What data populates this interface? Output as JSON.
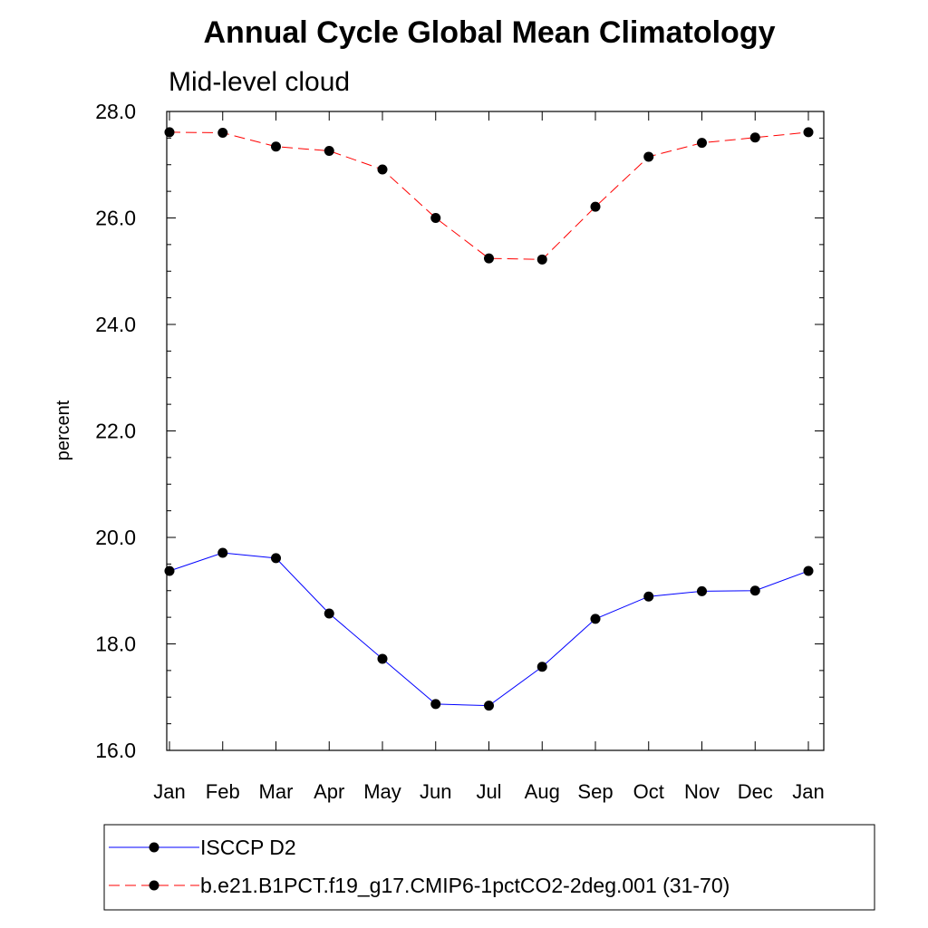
{
  "chart_data": {
    "type": "line",
    "title": "Annual Cycle Global Mean Climatology",
    "subtitle": "Mid-level cloud",
    "xlabel": "",
    "ylabel": "percent",
    "categories": [
      "Jan",
      "Feb",
      "Mar",
      "Apr",
      "May",
      "Jun",
      "Jul",
      "Aug",
      "Sep",
      "Oct",
      "Nov",
      "Dec",
      "Jan"
    ],
    "ylim": [
      16.0,
      28.0
    ],
    "yticks": [
      "16.0",
      "18.0",
      "20.0",
      "22.0",
      "24.0",
      "26.0",
      "28.0"
    ],
    "grid": false,
    "legend_position": "bottom",
    "series": [
      {
        "name": "ISCCP D2",
        "color": "#0000ff",
        "line_style": "solid",
        "marker": "circle",
        "values": [
          19.37,
          19.71,
          19.61,
          18.57,
          17.72,
          16.87,
          16.84,
          17.57,
          18.47,
          18.89,
          18.99,
          19.0,
          19.37
        ]
      },
      {
        "name": "b.e21.B1PCT.f19_g17.CMIP6-1pctCO2-2deg.001 (31-70)",
        "color": "#ff0000",
        "line_style": "dashed",
        "marker": "circle",
        "values": [
          27.61,
          27.6,
          27.34,
          27.26,
          26.91,
          26.0,
          25.24,
          25.22,
          26.21,
          27.15,
          27.41,
          27.51,
          27.61
        ]
      }
    ]
  }
}
